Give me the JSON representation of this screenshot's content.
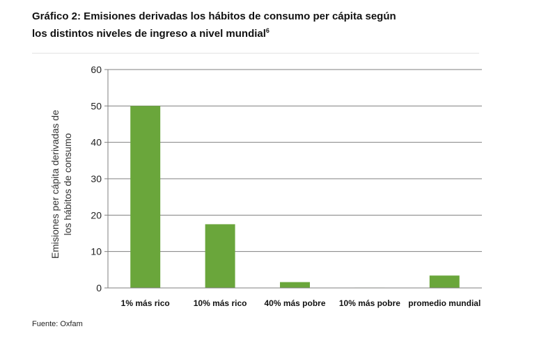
{
  "title": {
    "line1": "Gráfico 2: Emisiones derivadas los hábitos de consumo per cápita según",
    "line2": "los distintos niveles de ingreso a nivel mundial",
    "footnote": "6"
  },
  "source": "Fuente: Oxfam",
  "chart_data": {
    "type": "bar",
    "title": "",
    "ylabel": "Emisiones per cápita derivadas de los hábitos de consumo",
    "ylabel_lines": [
      "Emisiones per cápita derivadas de",
      "los hábitos de consumo"
    ],
    "xlabel": "",
    "categories": [
      "1% más rico",
      "10% más rico",
      "40% más pobre",
      "10% más pobre",
      "promedio mundial"
    ],
    "values": [
      50,
      17.5,
      1.6,
      0.1,
      3.4
    ],
    "ylim": [
      0,
      60
    ],
    "yticks": [
      0,
      10,
      20,
      30,
      40,
      50,
      60
    ],
    "grid": true,
    "bar_color": "#6aa63b"
  }
}
